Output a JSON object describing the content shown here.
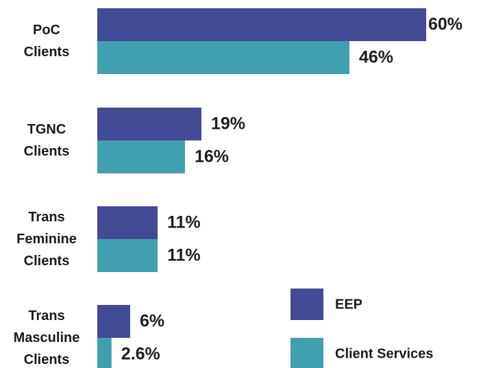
{
  "chart_data": {
    "type": "bar",
    "orientation": "horizontal",
    "categories": [
      "PoC Clients",
      "TGNC Clients",
      "Trans Feminine Clients",
      "Trans Masculine Clients"
    ],
    "series": [
      {
        "name": "EEP",
        "color": "#434b96",
        "values": [
          60,
          19,
          11,
          6
        ],
        "value_labels": [
          "60%",
          "19%",
          "11%",
          "6%"
        ]
      },
      {
        "name": "Client Services",
        "color": "#41a0b0",
        "values": [
          46,
          16,
          11,
          2.6
        ],
        "value_labels": [
          "46%",
          "16%",
          "11%",
          "2.6%"
        ]
      }
    ]
  }
}
